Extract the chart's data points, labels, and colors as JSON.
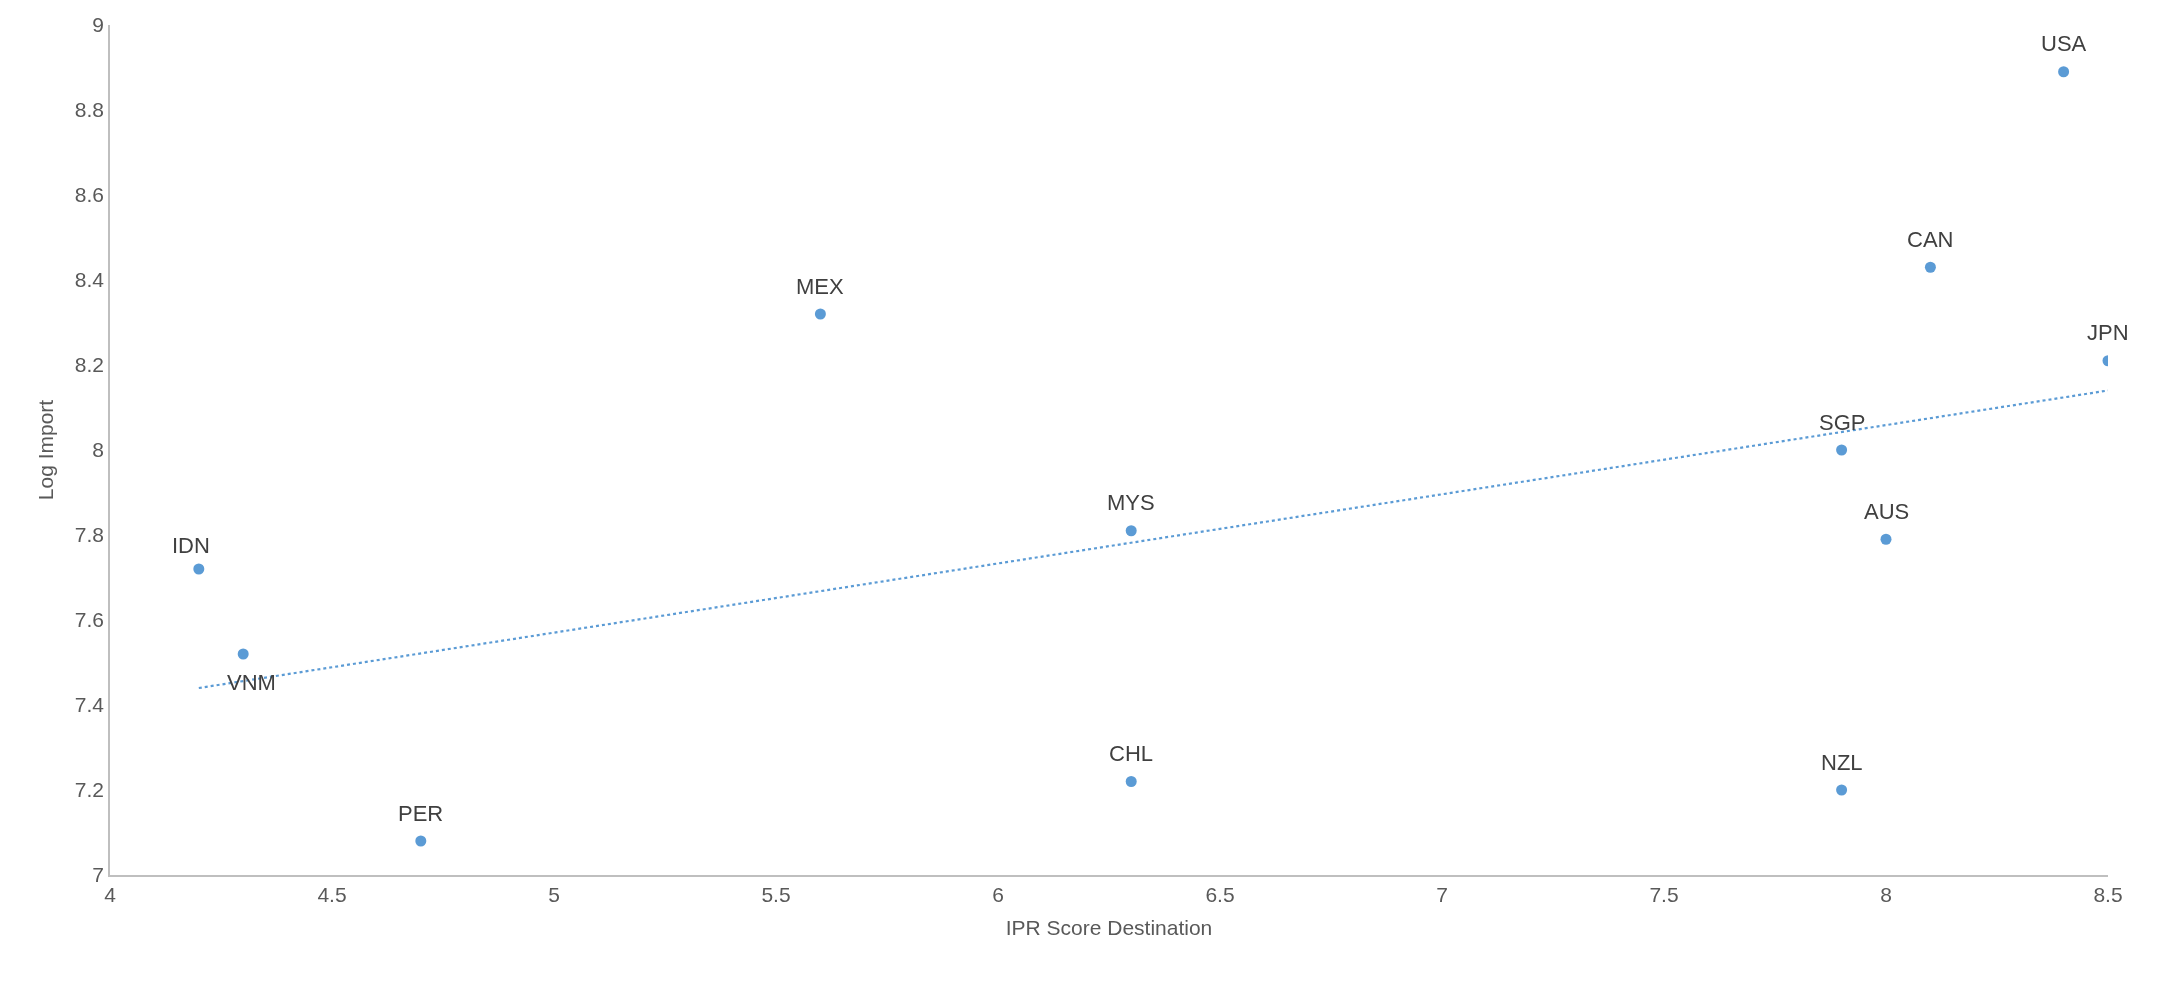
{
  "chart_data": {
    "type": "scatter",
    "xlabel": "IPR Score Destination",
    "ylabel": "Log Import",
    "xlim": [
      4,
      8.5
    ],
    "xticks": [
      4,
      4.5,
      5,
      5.5,
      6,
      6.5,
      7,
      7.5,
      8,
      8.5
    ],
    "ylim": [
      7,
      9
    ],
    "yticks": [
      7,
      7.2,
      7.4,
      7.6,
      7.8,
      8,
      8.2,
      8.4,
      8.6,
      8.8,
      9
    ],
    "marker": "circle",
    "series": [
      {
        "color": "#5b9bd5",
        "x": [
          8.4,
          8.1,
          8.5,
          7.9,
          8.0,
          7.9,
          5.6,
          6.3,
          6.3,
          4.2,
          4.3,
          4.7
        ],
        "values": [
          8.89,
          8.43,
          8.21,
          8.0,
          7.79,
          7.2,
          8.32,
          7.81,
          7.22,
          7.72,
          7.52,
          7.08
        ]
      },
      {
        "type": "line",
        "marker": "none",
        "color": "#5b9bd5",
        "line_style": "dotted",
        "x": [
          4.2,
          8.5
        ],
        "values": [
          7.44,
          8.14
        ]
      }
    ],
    "annotations": [
      {
        "text": "USA",
        "x": 8.4,
        "y": 8.89
      },
      {
        "text": "CAN",
        "x": 8.1,
        "y": 8.43
      },
      {
        "text": "JPN",
        "x": 8.5,
        "y": 8.21
      },
      {
        "text": "SGP",
        "x": 7.9,
        "y": 8.0
      },
      {
        "text": "AUS",
        "x": 8.0,
        "y": 7.79
      },
      {
        "text": "NZL",
        "x": 7.9,
        "y": 7.2
      },
      {
        "text": "MEX",
        "x": 5.6,
        "y": 8.32
      },
      {
        "text": "MYS",
        "x": 6.3,
        "y": 7.81
      },
      {
        "text": "CHL",
        "x": 6.3,
        "y": 7.22
      },
      {
        "text": "IDN",
        "x": 4.2,
        "y": 7.72
      },
      {
        "text": "VNM",
        "x": 4.3,
        "y": 7.52
      },
      {
        "text": "PER",
        "x": 4.7,
        "y": 7.08
      }
    ]
  }
}
